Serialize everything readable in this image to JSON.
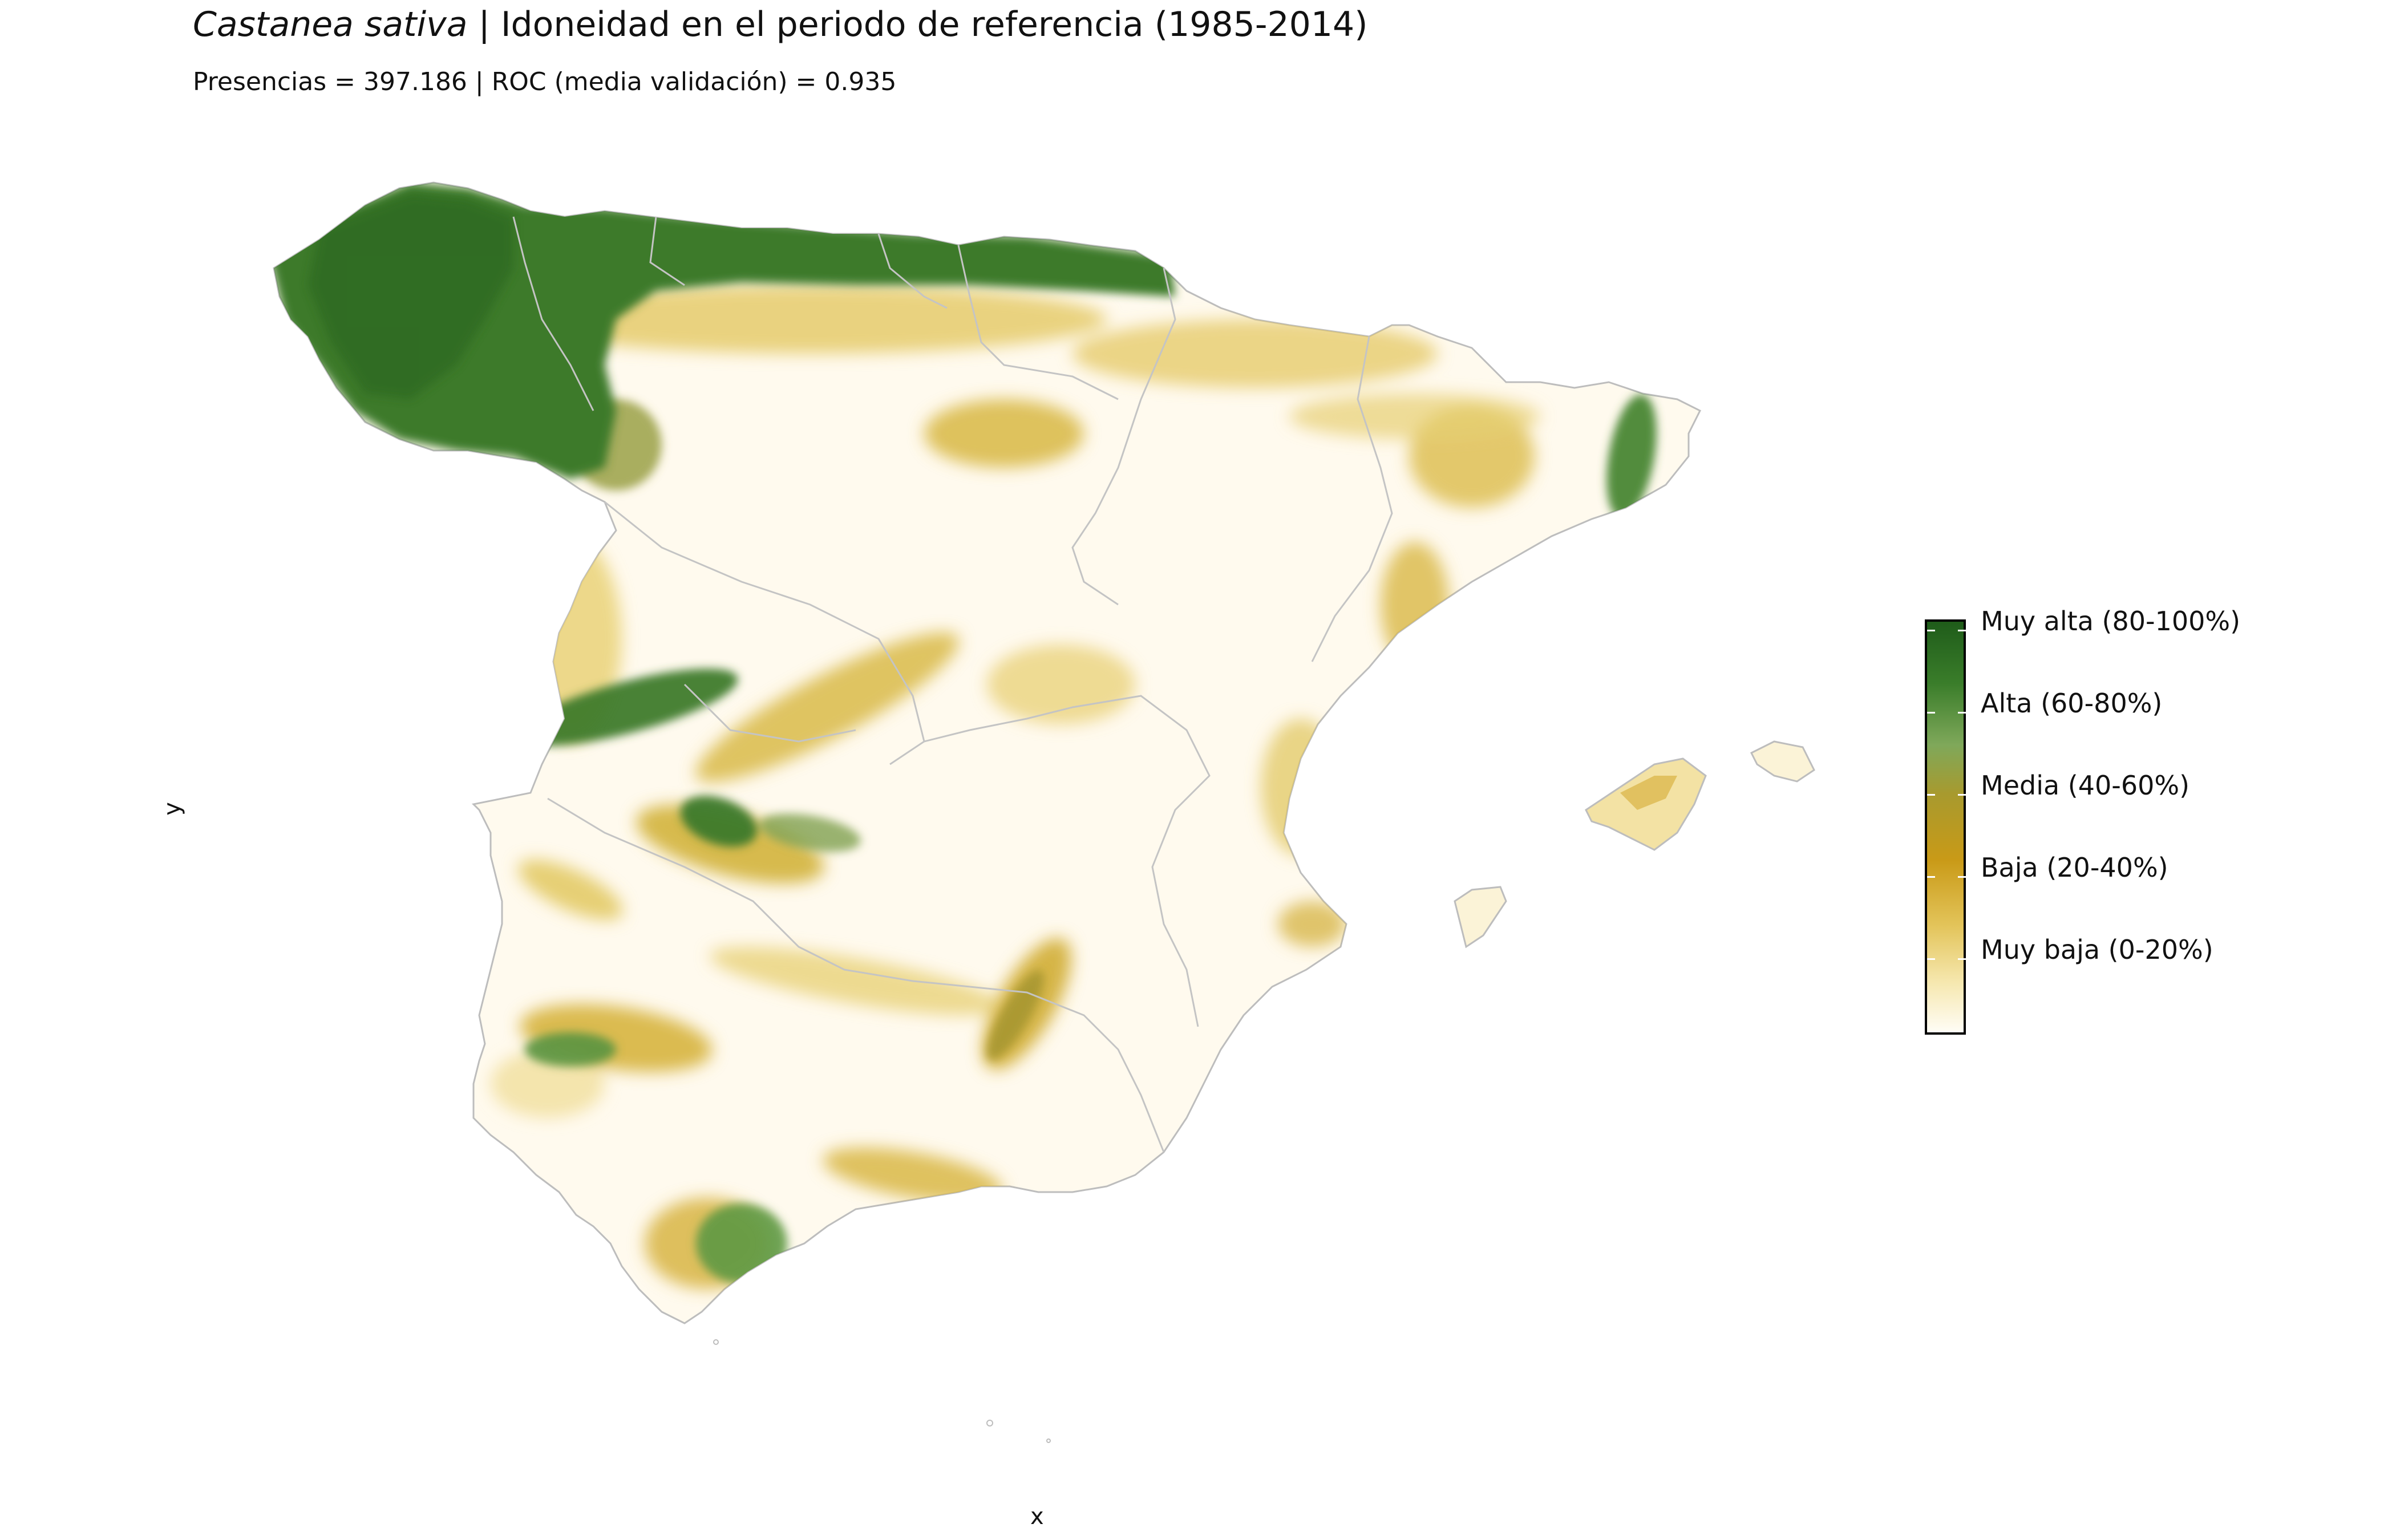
{
  "title": {
    "species": "Castanea sativa",
    "rest": " | Idoneidad en el periodo de referencia (1985-2014)"
  },
  "subtitle": "Presencias = 397.186  |  ROC (media validación) = 0.935",
  "axes": {
    "x_label": "x",
    "y_label": "y"
  },
  "legend": {
    "items": [
      {
        "label": "Muy alta (80-100%)",
        "color": "#1f5c1a"
      },
      {
        "label": "Alta (60-80%)",
        "color": "#5f9a45"
      },
      {
        "label": "Media (40-60%)",
        "color": "#a89a2e"
      },
      {
        "label": "Baja (20-40%)",
        "color": "#c99a17"
      },
      {
        "label": "Muy baja (0-20%)",
        "color": "#f2dc8a"
      }
    ]
  },
  "map_colors": {
    "base": "#fffaee",
    "outline": "#bdbdbd",
    "very_high": "#2f6b22",
    "high": "#5f9a45",
    "medium": "#b5a03a",
    "low": "#d4b03a",
    "very_low": "#f1df9a"
  }
}
